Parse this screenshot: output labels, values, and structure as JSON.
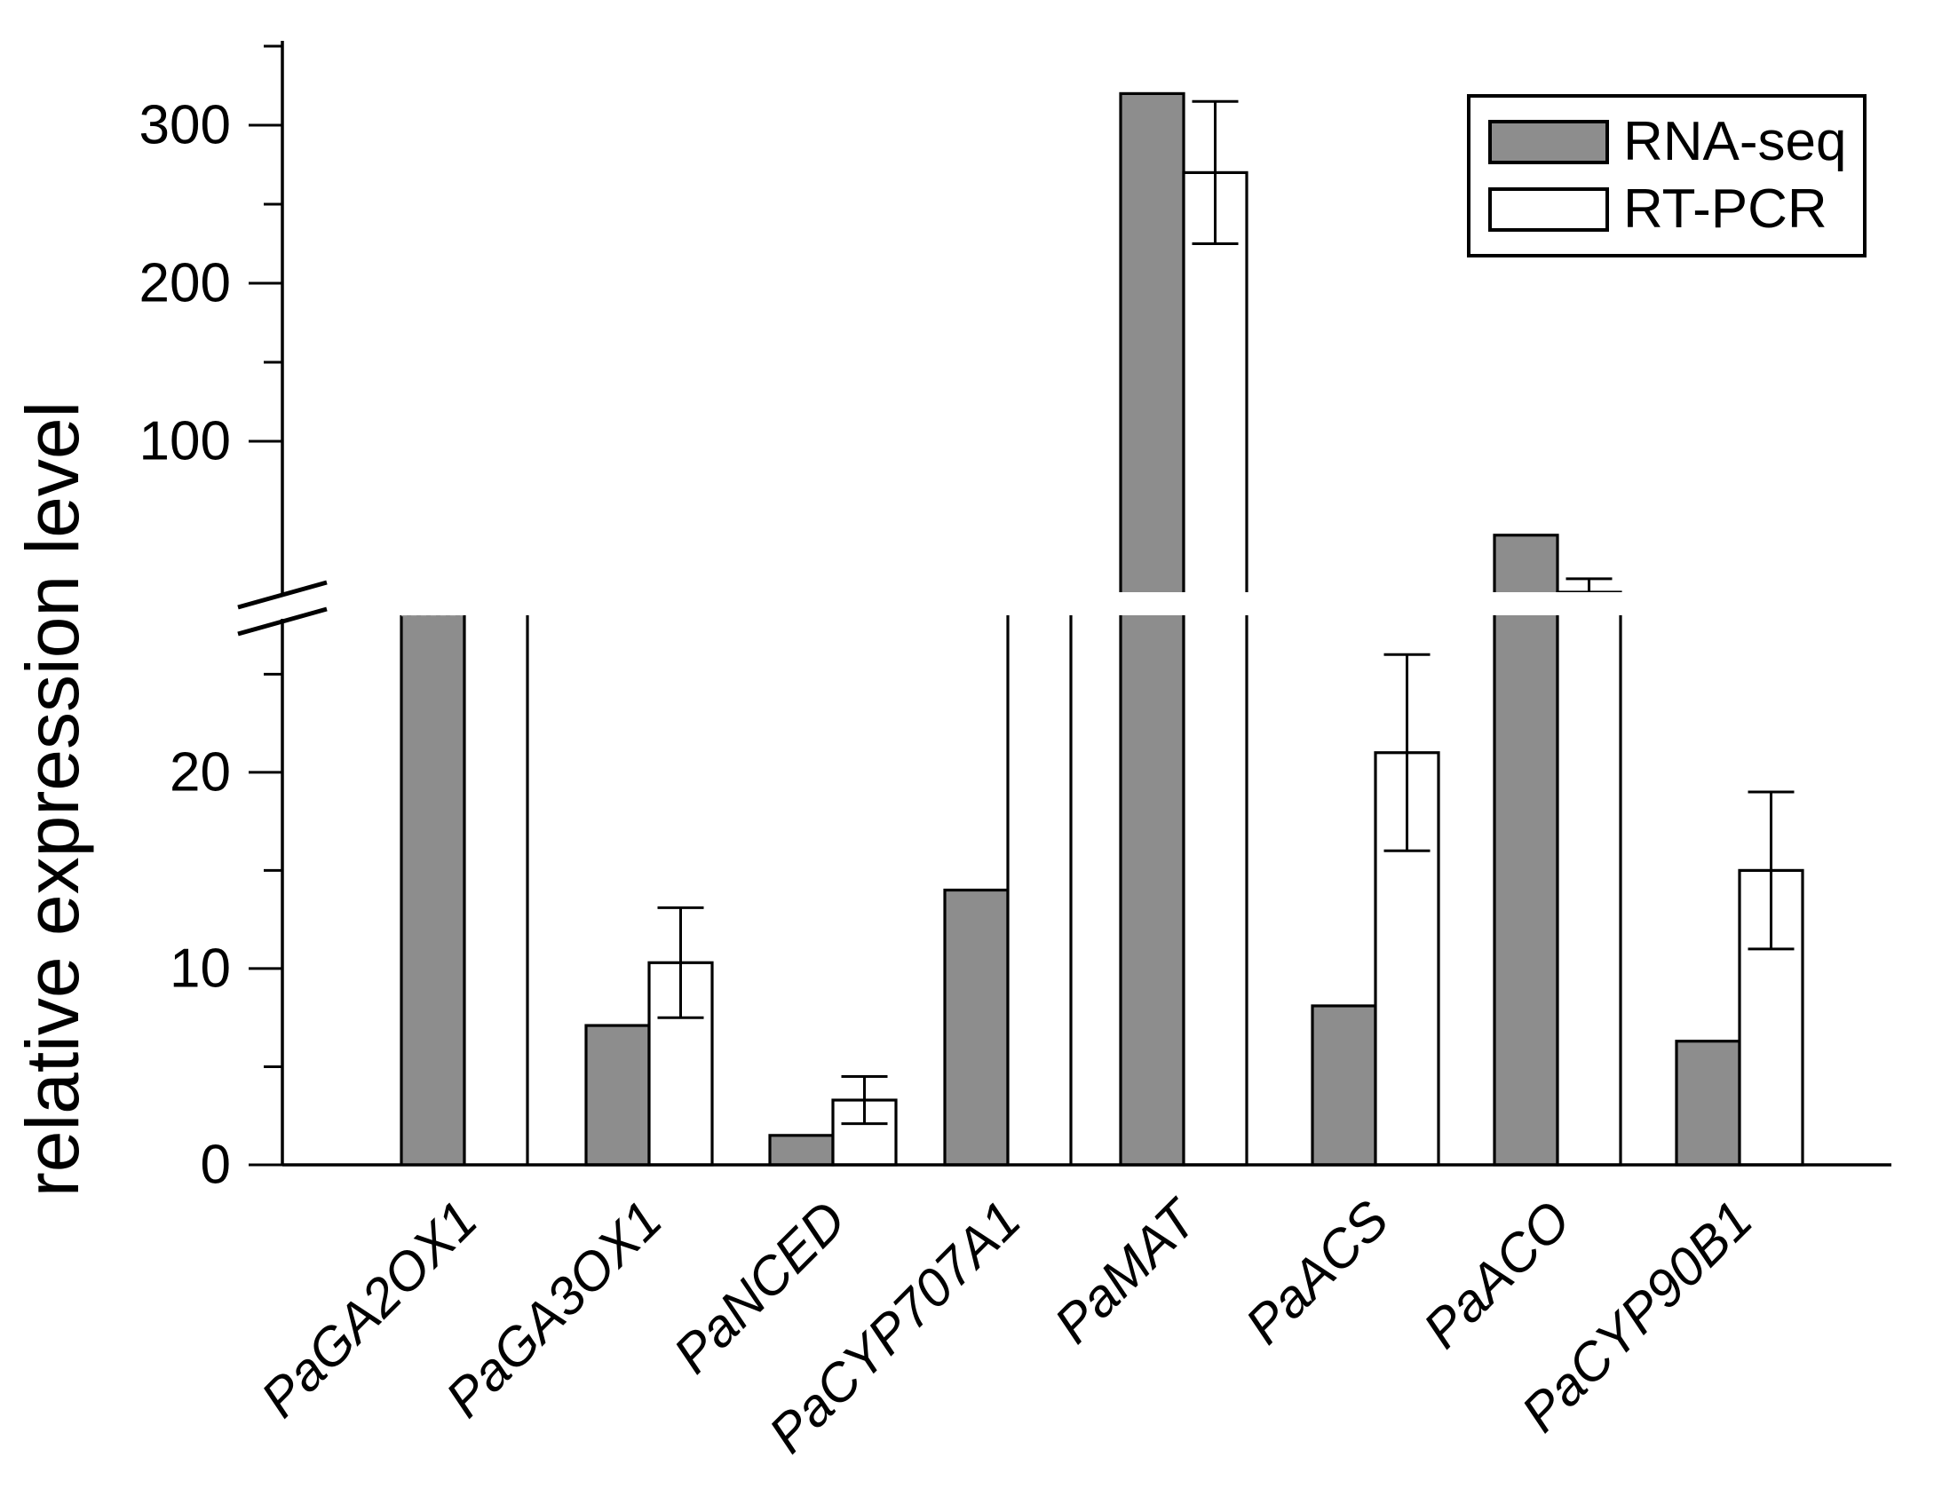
{
  "figure": {
    "background": "#ffffff"
  },
  "legend": {
    "items": [
      {
        "label": "RNA-seq",
        "color": "#8d8d8d"
      },
      {
        "label": "RT-PCR",
        "color": "#ffffff"
      }
    ]
  },
  "chart_data": {
    "type": "bar",
    "title": "",
    "xlabel": "",
    "ylabel": "relative expression level",
    "categories": [
      "PaGA2OX1",
      "PaGA3OX1",
      "PaNCED",
      "PaCYP707A1",
      "PaMAT",
      "PaACS",
      "PaACO",
      "PaCYP90B1"
    ],
    "series": [
      {
        "name": "RNA-seq",
        "fill": "#8d8d8d",
        "values": [
          40,
          7.1,
          1.5,
          14,
          320,
          8.1,
          72,
          6.3
        ],
        "errors": [
          null,
          null,
          null,
          null,
          null,
          null,
          null,
          null
        ],
        "clipped_at_axis_break": [
          true,
          false,
          false,
          false,
          false,
          false,
          false,
          false
        ]
      },
      {
        "name": "RT-PCR",
        "fill": "#ffffff",
        "values": [
          40,
          10.3,
          3.3,
          40,
          270,
          21,
          55,
          15
        ],
        "errors": [
          null,
          2.8,
          1.2,
          null,
          45,
          5,
          4,
          4
        ],
        "clipped_at_axis_break": [
          true,
          false,
          false,
          true,
          false,
          false,
          false,
          false
        ]
      }
    ],
    "y_axis": {
      "break_gap": [
        28,
        55
      ],
      "lower_range": [
        0,
        28
      ],
      "upper_range": [
        55,
        350
      ],
      "lower_ticks_major": [
        0,
        10,
        20
      ],
      "lower_ticks_minor": [
        5,
        15,
        25
      ],
      "upper_ticks_major": [
        100,
        200,
        300
      ],
      "upper_ticks_minor": [
        150,
        250,
        350
      ]
    },
    "legend_position": "top-right",
    "grid": false,
    "bar_outline_color": "#000000"
  }
}
